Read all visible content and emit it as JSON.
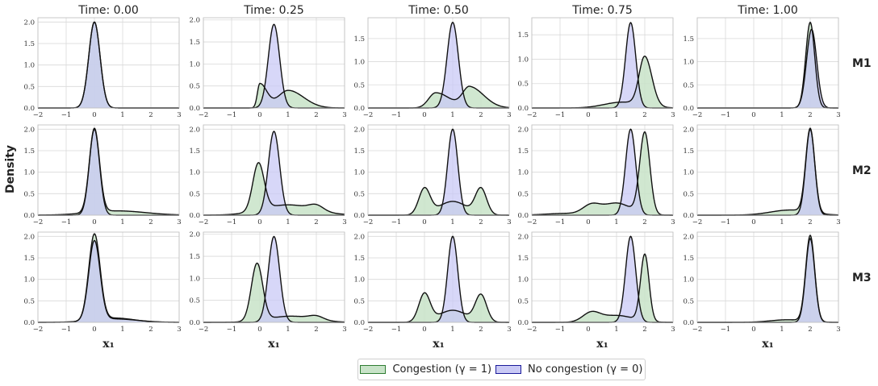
{
  "chart_data": {
    "type": "area",
    "ylabel": "Density",
    "xlabel": "x₁",
    "xlim": [
      -2,
      3
    ],
    "xticks": [
      "−2",
      "−1",
      "0",
      "1",
      "2",
      "3"
    ],
    "columns": [
      "Time: 0.00",
      "Time: 0.25",
      "Time: 0.50",
      "Time: 0.75",
      "Time: 1.00"
    ],
    "rows": [
      "M1",
      "M2",
      "M3"
    ],
    "legend": {
      "congestion": "Congestion (γ = 1)",
      "no_congestion": "No congestion (γ = 0)"
    },
    "colors": {
      "congestion_fill": "#c8e3c8",
      "no_congestion_fill": "#c9c9f5",
      "overlap_fill": "#a3b3d8",
      "line": "#111111",
      "grid": "#d9d9d9"
    },
    "panels": [
      [
        {
          "ylim": [
            0,
            2.1
          ],
          "yticks": [
            "0.0",
            "0.5",
            "1.0",
            "1.5",
            "2.0"
          ],
          "congestion": [
            [
              0,
              0.2,
              2.0,
              1
            ]
          ],
          "no_congestion": [
            [
              0,
              0.2,
              2.0,
              1
            ]
          ]
        },
        {
          "ylim": [
            0,
            2.05
          ],
          "yticks": [
            "0.0",
            "0.5",
            "1.0",
            "1.5",
            "2.0"
          ],
          "congestion": [
            [
              0,
              0.25,
              0.55,
              0.35
            ],
            [
              1.0,
              0.55,
              0.4,
              0.65
            ]
          ],
          "no_congestion": [
            [
              0.5,
              0.2,
              1.9,
              1
            ]
          ]
        },
        {
          "ylim": [
            0,
            1.95
          ],
          "yticks": [
            "0.0",
            "0.5",
            "1.0",
            "1.5"
          ],
          "congestion": [
            [
              0.4,
              0.5,
              0.33,
              0.5
            ],
            [
              1.6,
              0.5,
              0.45,
              0.5
            ]
          ],
          "no_congestion": [
            [
              1.0,
              0.2,
              1.85,
              1
            ]
          ]
        },
        {
          "ylim": [
            0,
            1.85
          ],
          "yticks": [
            "0.0",
            "0.5",
            "1.0",
            "1.5"
          ],
          "congestion": [
            [
              2.0,
              0.25,
              1.0,
              0.8
            ],
            [
              1.2,
              0.7,
              0.12,
              0.9
            ]
          ],
          "no_congestion": [
            [
              1.5,
              0.18,
              1.75,
              1
            ]
          ]
        },
        {
          "ylim": [
            0,
            1.95
          ],
          "yticks": [
            "0.0",
            "0.5",
            "1.0",
            "1.5"
          ],
          "congestion": [
            [
              2.0,
              0.16,
              1.85,
              1
            ]
          ],
          "no_congestion": [
            [
              2.05,
              0.18,
              1.7,
              1
            ]
          ]
        }
      ],
      [
        {
          "ylim": [
            0,
            2.1
          ],
          "yticks": [
            "0.0",
            "0.5",
            "1.0",
            "1.5",
            "2.0"
          ],
          "congestion": [
            [
              0,
              0.18,
              1.95,
              1
            ],
            [
              0.8,
              1.0,
              0.1,
              1
            ]
          ],
          "no_congestion": [
            [
              0,
              0.18,
              2.0,
              1
            ]
          ]
        },
        {
          "ylim": [
            0,
            2.1
          ],
          "yticks": [
            "0.0",
            "0.5",
            "1.0",
            "1.5",
            "2.0"
          ],
          "congestion": [
            [
              -0.05,
              0.2,
              1.1,
              1
            ],
            [
              1.0,
              0.9,
              0.24,
              1
            ],
            [
              2.0,
              0.25,
              0.12,
              1
            ]
          ],
          "no_congestion": [
            [
              0.5,
              0.2,
              1.95,
              1
            ]
          ]
        },
        {
          "ylim": [
            0,
            2.1
          ],
          "yticks": [
            "0.0",
            "0.5",
            "1.0",
            "1.5",
            "2.0"
          ],
          "congestion": [
            [
              0,
              0.2,
              0.6,
              1
            ],
            [
              2.0,
              0.2,
              0.6,
              1
            ],
            [
              1.0,
              0.5,
              0.32,
              1
            ]
          ],
          "no_congestion": [
            [
              1.0,
              0.18,
              2.0,
              1
            ]
          ]
        },
        {
          "ylim": [
            0,
            2.1
          ],
          "yticks": [
            "0.0",
            "0.5",
            "1.0",
            "1.5",
            "2.0"
          ],
          "congestion": [
            [
              2.0,
              0.18,
              1.9,
              1
            ],
            [
              0.1,
              0.3,
              0.2,
              1
            ],
            [
              1.0,
              0.5,
              0.28,
              1
            ],
            [
              -0.8,
              0.7,
              0.04,
              1
            ]
          ],
          "no_congestion": [
            [
              1.5,
              0.18,
              2.0,
              1
            ]
          ]
        },
        {
          "ylim": [
            0,
            2.1
          ],
          "yticks": [
            "0.0",
            "0.5",
            "1.0",
            "1.5",
            "2.0"
          ],
          "congestion": [
            [
              2.0,
              0.16,
              1.95,
              1
            ],
            [
              1.3,
              0.7,
              0.12,
              1
            ]
          ],
          "no_congestion": [
            [
              2.0,
              0.16,
              2.0,
              1
            ]
          ]
        }
      ],
      [
        {
          "ylim": [
            0,
            2.1
          ],
          "yticks": [
            "0.0",
            "0.5",
            "1.0",
            "1.5",
            "2.0"
          ],
          "congestion": [
            [
              0,
              0.2,
              2.0,
              1
            ],
            [
              0.7,
              0.7,
              0.1,
              1
            ]
          ],
          "no_congestion": [
            [
              0,
              0.2,
              1.85,
              1
            ],
            [
              0.7,
              0.8,
              0.08,
              1
            ]
          ]
        },
        {
          "ylim": [
            0,
            2.05
          ],
          "yticks": [
            "0.0",
            "0.5",
            "1.0",
            "1.5",
            "2.0"
          ],
          "congestion": [
            [
              -0.1,
              0.2,
              1.3,
              1
            ],
            [
              1.1,
              0.8,
              0.14,
              1
            ],
            [
              2.0,
              0.25,
              0.08,
              1
            ]
          ],
          "no_congestion": [
            [
              0.5,
              0.2,
              1.95,
              1
            ]
          ]
        },
        {
          "ylim": [
            0,
            2.1
          ],
          "yticks": [
            "0.0",
            "0.5",
            "1.0",
            "1.5",
            "2.0"
          ],
          "congestion": [
            [
              0,
              0.2,
              0.65,
              1
            ],
            [
              2.0,
              0.2,
              0.62,
              1
            ],
            [
              1.0,
              0.5,
              0.28,
              1
            ]
          ],
          "no_congestion": [
            [
              1.0,
              0.18,
              2.0,
              1
            ]
          ]
        },
        {
          "ylim": [
            0,
            2.1
          ],
          "yticks": [
            "0.0",
            "0.5",
            "1.0",
            "1.5",
            "2.0"
          ],
          "congestion": [
            [
              2.0,
              0.15,
              1.55,
              1
            ],
            [
              0.1,
              0.3,
              0.2,
              1
            ],
            [
              1.0,
              0.6,
              0.16,
              1
            ]
          ],
          "no_congestion": [
            [
              1.5,
              0.18,
              2.0,
              1
            ]
          ]
        },
        {
          "ylim": [
            0,
            2.1
          ],
          "yticks": [
            "0.0",
            "0.5",
            "1.0",
            "1.5",
            "2.0"
          ],
          "congestion": [
            [
              2.0,
              0.16,
              2.0,
              1
            ],
            [
              1.2,
              0.6,
              0.06,
              1
            ]
          ],
          "no_congestion": [
            [
              2.0,
              0.16,
              1.95,
              1
            ]
          ]
        }
      ]
    ]
  }
}
